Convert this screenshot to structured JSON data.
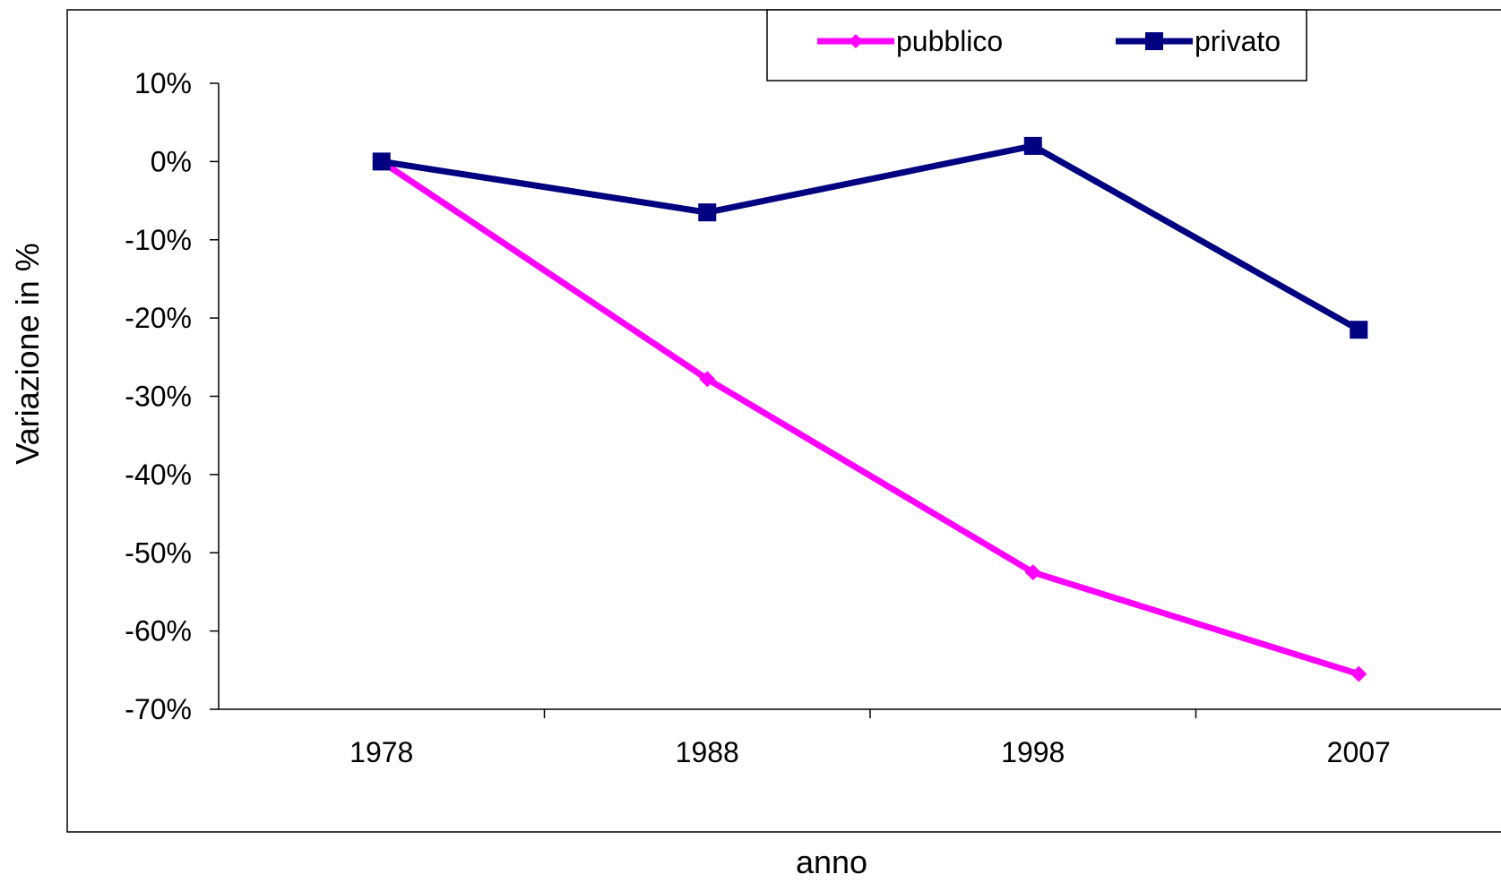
{
  "chart_data": {
    "type": "line",
    "title": "",
    "xlabel": "anno",
    "ylabel": "Variazione in %",
    "categories": [
      "1978",
      "1988",
      "1998",
      "2007"
    ],
    "ylim": [
      -70,
      10
    ],
    "yticks": [
      10,
      0,
      -10,
      -20,
      -30,
      -40,
      -50,
      -60,
      -70
    ],
    "ytick_labels": [
      "10%",
      "0%",
      "-10%",
      "-20%",
      "-30%",
      "-40%",
      "-50%",
      "-60%",
      "-70%"
    ],
    "grid": false,
    "legend": "top",
    "series": [
      {
        "name": "pubblico",
        "values": [
          0,
          -27.8,
          -52.5,
          -65.5
        ],
        "color": "#ff00ff",
        "marker": "diamond"
      },
      {
        "name": "privato",
        "values": [
          0,
          -6.5,
          2,
          -21.5
        ],
        "color": "#000080",
        "marker": "square"
      }
    ]
  }
}
